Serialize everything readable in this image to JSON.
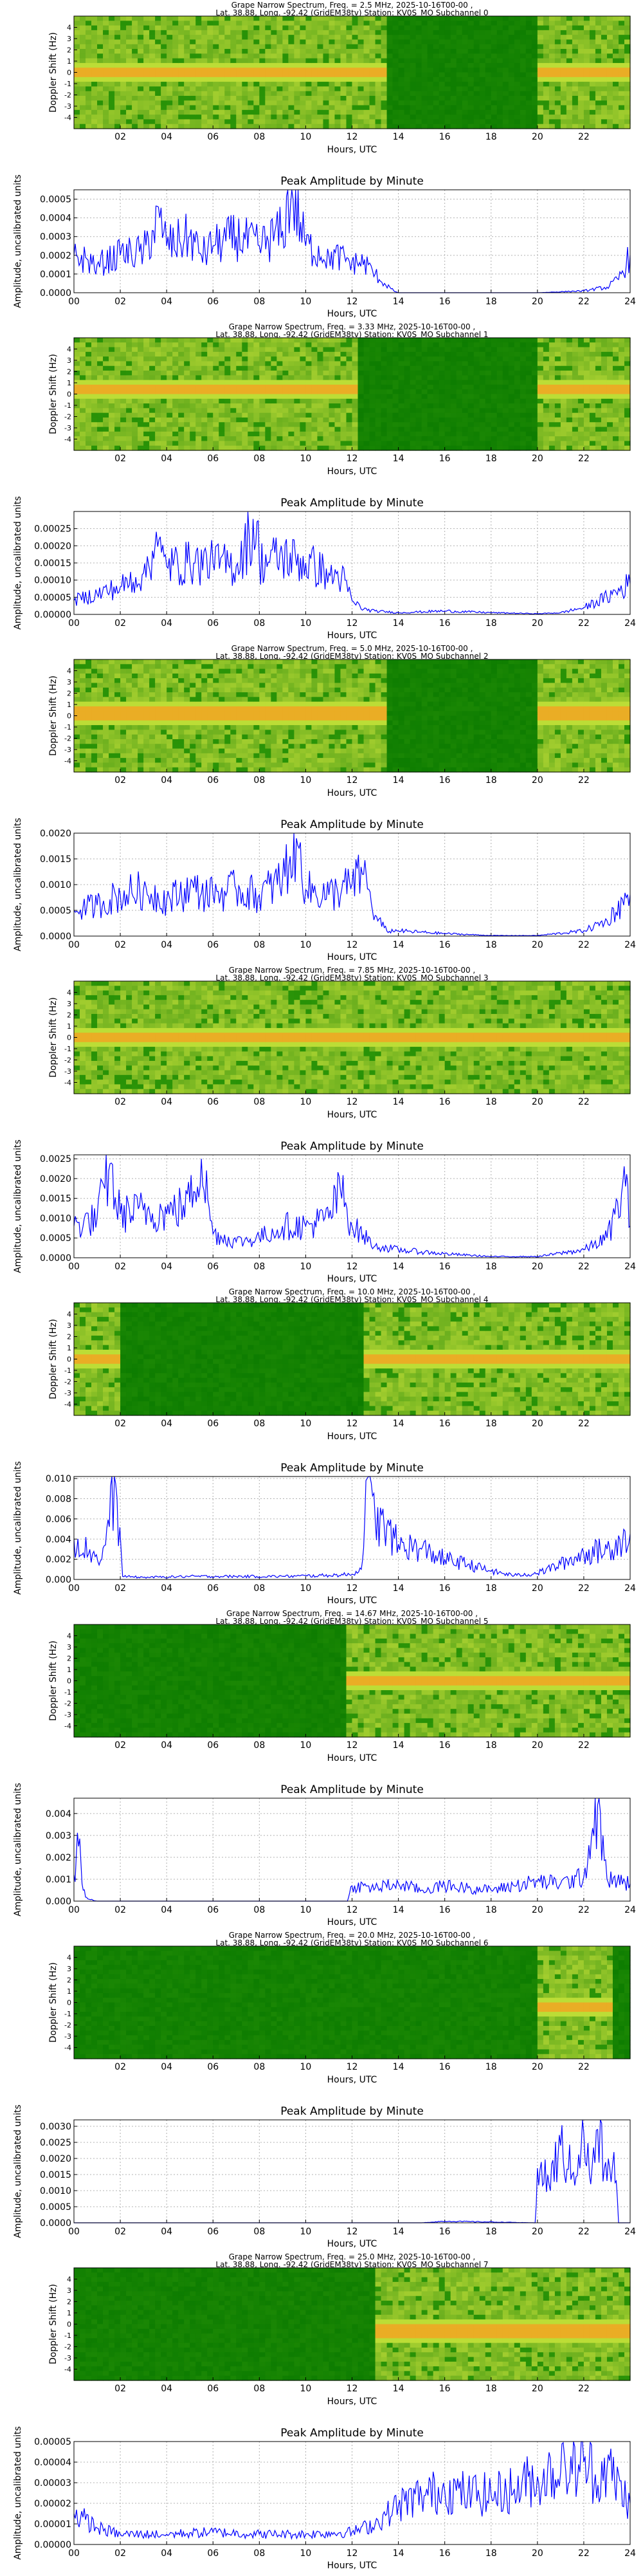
{
  "shared": {
    "spec_title_line2_prefix": "Lat.  38.88, Long. -92.42 (GridEM38tv) Station: KV0S_MO Subchannel ",
    "spec_ylabel": "Doppler Shift (Hz)",
    "spec_yticks": [
      "4",
      "3",
      "2",
      "1",
      "0",
      "-1",
      "-2",
      "-3",
      "-4"
    ],
    "xticks_spec": [
      "02",
      "04",
      "06",
      "08",
      "10",
      "12",
      "14",
      "16",
      "18",
      "20",
      "22"
    ],
    "xticks_amp": [
      "00",
      "02",
      "04",
      "06",
      "08",
      "10",
      "12",
      "14",
      "16",
      "18",
      "20",
      "22",
      "24"
    ],
    "xlabel": "Hours, UTC",
    "amp_title": "Peak Amplitude by Minute",
    "amp_ylabel": "Amplitude, uncalibrated units",
    "line_color": "#0000ff",
    "grid": true
  },
  "chart_data": [
    {
      "type": "heatmap",
      "title": "Grape Narrow Spectrum, Freq. = 2.5 MHz, 2025-10-16T00-00 ,",
      "subchannel": "0",
      "xlabel": "Hours, UTC",
      "ylabel": "Doppler Shift (Hz)",
      "xlim": [
        0,
        24
      ],
      "ylim": [
        -5,
        5
      ],
      "trace_hz": 0.0,
      "active_hours": [
        [
          0,
          13.6
        ],
        [
          20,
          24
        ]
      ]
    },
    {
      "type": "line",
      "title": "Peak Amplitude by Minute",
      "xlabel": "Hours, UTC",
      "ylabel": "Amplitude, uncalibrated units",
      "xlim": [
        0,
        24
      ],
      "ylim": [
        0,
        0.00055
      ],
      "yticks": [
        "0.0000",
        "0.0001",
        "0.0002",
        "0.0003",
        "0.0004",
        "0.0005"
      ],
      "x": [
        0,
        1,
        2,
        3,
        3.7,
        4,
        5,
        5.5,
        6,
        7,
        8,
        9,
        9.4,
        10,
        11,
        12,
        12.7,
        13,
        13.4,
        13.8,
        14,
        16,
        18,
        20,
        22,
        23,
        23.5,
        24
      ],
      "y": [
        0.0002,
        0.00015,
        0.0002,
        0.00022,
        0.0004,
        0.00025,
        0.0003,
        0.0002,
        0.00025,
        0.0003,
        0.00025,
        0.00033,
        0.00055,
        0.00025,
        0.0002,
        0.00017,
        0.00015,
        0.0001,
        5e-05,
        1e-05,
        0,
        0,
        0,
        0,
        1e-05,
        3e-05,
        7e-05,
        0.0002
      ]
    },
    {
      "type": "heatmap",
      "title": "Grape Narrow Spectrum, Freq. = 3.33 MHz, 2025-10-16T00-00 ,",
      "subchannel": "1",
      "xlabel": "Hours, UTC",
      "ylabel": "Doppler Shift (Hz)",
      "xlim": [
        0,
        24
      ],
      "ylim": [
        -5,
        5
      ],
      "trace_hz": 0.3,
      "active_hours": [
        [
          0,
          12.3
        ],
        [
          20,
          24
        ]
      ]
    },
    {
      "type": "line",
      "title": "Peak Amplitude by Minute",
      "xlabel": "Hours, UTC",
      "ylabel": "Amplitude, uncalibrated units",
      "xlim": [
        0,
        24
      ],
      "ylim": [
        0,
        0.0003
      ],
      "yticks": [
        "0.00000",
        "0.00005",
        "0.00010",
        "0.00015",
        "0.00020",
        "0.00025"
      ],
      "x": [
        0,
        1,
        2,
        3,
        3.5,
        4,
        5,
        6,
        7,
        7.9,
        8,
        9,
        10,
        11,
        11.7,
        12,
        12.5,
        13,
        14,
        16,
        18,
        20,
        21,
        22,
        23,
        24
      ],
      "y": [
        4e-05,
        6e-05,
        8e-05,
        0.00012,
        0.0002,
        0.00014,
        0.00015,
        0.00015,
        0.00014,
        0.00027,
        0.00015,
        0.00017,
        0.00015,
        0.00012,
        0.0001,
        4e-05,
        1.5e-05,
        1e-05,
        5e-06,
        1e-05,
        5e-06,
        2e-06,
        5e-06,
        2e-05,
        5e-05,
        9e-05
      ]
    },
    {
      "type": "heatmap",
      "title": "Grape Narrow Spectrum, Freq. = 5.0 MHz, 2025-10-16T00-00 ,",
      "subchannel": "2",
      "xlabel": "Hours, UTC",
      "ylabel": "Doppler Shift (Hz)",
      "xlim": [
        0,
        24
      ],
      "ylim": [
        -5,
        5
      ],
      "trace_hz": 0.2,
      "active_hours": [
        [
          0,
          13.5
        ],
        [
          20,
          24
        ]
      ]
    },
    {
      "type": "line",
      "title": "Peak Amplitude by Minute",
      "xlabel": "Hours, UTC",
      "ylabel": "Amplitude, uncalibrated units",
      "xlim": [
        0,
        24
      ],
      "ylim": [
        0,
        0.002
      ],
      "yticks": [
        "0.0000",
        "0.0005",
        "0.0010",
        "0.0015",
        "0.0020"
      ],
      "x": [
        0,
        1,
        2,
        3,
        4,
        5,
        6,
        7,
        8,
        9,
        9.6,
        10,
        11,
        12,
        12.5,
        13,
        13.5,
        14,
        16,
        18,
        20,
        22,
        23,
        24
      ],
      "y": [
        0.0005,
        0.0006,
        0.0008,
        0.0009,
        0.0007,
        0.0009,
        0.0008,
        0.0009,
        0.0008,
        0.0011,
        0.0019,
        0.0009,
        0.0008,
        0.001,
        0.0012,
        0.0004,
        0.0001,
        0.0001,
        5e-05,
        1e-05,
        1e-05,
        0.0001,
        0.0003,
        0.0008
      ]
    },
    {
      "type": "heatmap",
      "title": "Grape Narrow Spectrum, Freq. = 7.85 MHz, 2025-10-16T00-00 ,",
      "subchannel": "3",
      "xlabel": "Hours, UTC",
      "ylabel": "Doppler Shift (Hz)",
      "xlim": [
        0,
        24
      ],
      "ylim": [
        -5,
        5
      ],
      "trace_hz": 0.0,
      "active_hours": [
        [
          0,
          24
        ]
      ]
    },
    {
      "type": "line",
      "title": "Peak Amplitude by Minute",
      "xlabel": "Hours, UTC",
      "ylabel": "Amplitude, uncalibrated units",
      "xlim": [
        0,
        24
      ],
      "ylim": [
        0,
        0.0026
      ],
      "yticks": [
        "0.0000",
        "0.0005",
        "0.0010",
        "0.0015",
        "0.0020",
        "0.0025"
      ],
      "x": [
        0,
        1,
        1.5,
        2,
        3,
        4,
        5,
        5.5,
        6,
        7,
        8,
        9,
        10,
        11,
        11.5,
        12,
        13,
        14,
        16,
        18,
        20,
        22,
        23,
        23.8,
        24
      ],
      "y": [
        0.0008,
        0.001,
        0.0022,
        0.0011,
        0.0012,
        0.0011,
        0.0014,
        0.0025,
        0.0006,
        0.0004,
        0.0005,
        0.0008,
        0.0008,
        0.001,
        0.0017,
        0.0008,
        0.0003,
        0.0002,
        0.0001,
        3e-05,
        3e-05,
        0.0002,
        0.0005,
        0.0018,
        0.0008
      ]
    },
    {
      "type": "heatmap",
      "title": "Grape Narrow Spectrum, Freq. = 10.0 MHz, 2025-10-16T00-00 ,",
      "subchannel": "4",
      "xlabel": "Hours, UTC",
      "ylabel": "Doppler Shift (Hz)",
      "xlim": [
        0,
        24
      ],
      "ylim": [
        -5,
        5
      ],
      "trace_hz": 0.0,
      "active_hours": [
        [
          0,
          2
        ],
        [
          12.5,
          24
        ]
      ]
    },
    {
      "type": "line",
      "title": "Peak Amplitude by Minute",
      "xlabel": "Hours, UTC",
      "ylabel": "Amplitude, uncalibrated units",
      "xlim": [
        0,
        24
      ],
      "ylim": [
        0,
        0.0102
      ],
      "yticks": [
        "0.000",
        "0.002",
        "0.004",
        "0.006",
        "0.008",
        "0.010"
      ],
      "x": [
        0,
        0.8,
        1.2,
        1.8,
        2.1,
        3,
        5,
        7,
        9,
        11,
        12,
        12.4,
        12.6,
        13,
        14,
        15,
        16,
        17,
        18,
        19,
        20,
        21,
        22,
        23,
        24
      ],
      "y": [
        0.004,
        0.0025,
        0.002,
        0.0095,
        0.0003,
        0.0002,
        0.0003,
        0.0003,
        0.0003,
        0.0004,
        0.0005,
        0.001,
        0.0098,
        0.006,
        0.0035,
        0.003,
        0.002,
        0.0015,
        0.0008,
        0.0004,
        0.0006,
        0.0015,
        0.0025,
        0.003,
        0.0045
      ]
    },
    {
      "type": "heatmap",
      "title": "Grape Narrow Spectrum, Freq. = 14.67 MHz, 2025-10-16T00-00 ,",
      "subchannel": "5",
      "xlabel": "Hours, UTC",
      "ylabel": "Doppler Shift (Hz)",
      "xlim": [
        0,
        24
      ],
      "ylim": [
        -5,
        5
      ],
      "trace_hz": 0.0,
      "active_hours": [
        [
          11.8,
          24
        ]
      ]
    },
    {
      "type": "line",
      "title": "Peak Amplitude by Minute",
      "xlabel": "Hours, UTC",
      "ylabel": "Amplitude, uncalibrated units",
      "xlim": [
        0,
        24
      ],
      "ylim": [
        0,
        0.0047
      ],
      "yticks": [
        "0.000",
        "0.001",
        "0.002",
        "0.003",
        "0.004"
      ],
      "x": [
        0,
        0.2,
        0.4,
        0.6,
        1,
        4,
        8,
        11.8,
        12,
        13,
        14,
        15,
        16,
        17,
        18,
        19,
        20,
        21,
        22,
        22.6,
        23,
        24
      ],
      "y": [
        0.0012,
        0.0025,
        0.0005,
        0.0001,
        0,
        0,
        0,
        0,
        0.0007,
        0.0006,
        0.0008,
        0.0005,
        0.0007,
        0.0006,
        0.0005,
        0.0007,
        0.0009,
        0.0008,
        0.0011,
        0.0044,
        0.001,
        0.0008
      ]
    },
    {
      "type": "heatmap",
      "title": "Grape Narrow Spectrum, Freq. = 20.0 MHz, 2025-10-16T00-00 ,",
      "subchannel": "6",
      "xlabel": "Hours, UTC",
      "ylabel": "Doppler Shift (Hz)",
      "xlim": [
        0,
        24
      ],
      "ylim": [
        -5,
        5
      ],
      "trace_hz": -0.5,
      "active_hours": [
        [
          20,
          23.3
        ]
      ]
    },
    {
      "type": "line",
      "title": "Peak Amplitude by Minute",
      "xlabel": "Hours, UTC",
      "ylabel": "Amplitude, uncalibrated units",
      "xlim": [
        0,
        24
      ],
      "ylim": [
        0,
        0.0032
      ],
      "yticks": [
        "0.0000",
        "0.0005",
        "0.0010",
        "0.0015",
        "0.0020",
        "0.0025",
        "0.0030"
      ],
      "x": [
        0,
        5,
        10,
        15,
        16,
        19.9,
        20,
        20.5,
        21,
        21.5,
        22,
        22.3,
        22.6,
        23,
        23.3,
        23.5,
        24
      ],
      "y": [
        0,
        0,
        0,
        0,
        5e-05,
        0,
        0.0017,
        0.0012,
        0.0024,
        0.0015,
        0.0028,
        0.0012,
        0.0029,
        0.0013,
        0.0022,
        0,
        0
      ]
    },
    {
      "type": "heatmap",
      "title": "Grape Narrow Spectrum, Freq. = 25.0 MHz, 2025-10-16T00-00 ,",
      "subchannel": "7",
      "xlabel": "Hours, UTC",
      "ylabel": "Doppler Shift (Hz)",
      "xlim": [
        0,
        24
      ],
      "ylim": [
        -5,
        5
      ],
      "trace_hz": -0.6,
      "active_hours": [
        [
          13,
          24
        ]
      ]
    },
    {
      "type": "line",
      "title": "Peak Amplitude by Minute",
      "xlabel": "Hours, UTC",
      "ylabel": "Amplitude, uncalibrated units",
      "xlim": [
        0,
        24
      ],
      "ylim": [
        0,
        5e-05
      ],
      "yticks": [
        "0.00000",
        "0.00001",
        "0.00002",
        "0.00003",
        "0.00004",
        "0.00005"
      ],
      "x": [
        0,
        0.5,
        1,
        2,
        4,
        6,
        8,
        10,
        12,
        13,
        14,
        15,
        16,
        17,
        18,
        19,
        20,
        21,
        22,
        22.5,
        23,
        24
      ],
      "y": [
        1.5e-05,
        1.2e-05,
        8e-06,
        5e-06,
        5e-06,
        6e-06,
        5e-06,
        5e-06,
        6e-06,
        1e-05,
        1.9e-05,
        2.4e-05,
        2.6e-05,
        2.5e-05,
        2.4e-05,
        2.7e-05,
        3.3e-05,
        3.5e-05,
        4e-05,
        3.4e-05,
        3.7e-05,
        2e-05
      ]
    }
  ]
}
